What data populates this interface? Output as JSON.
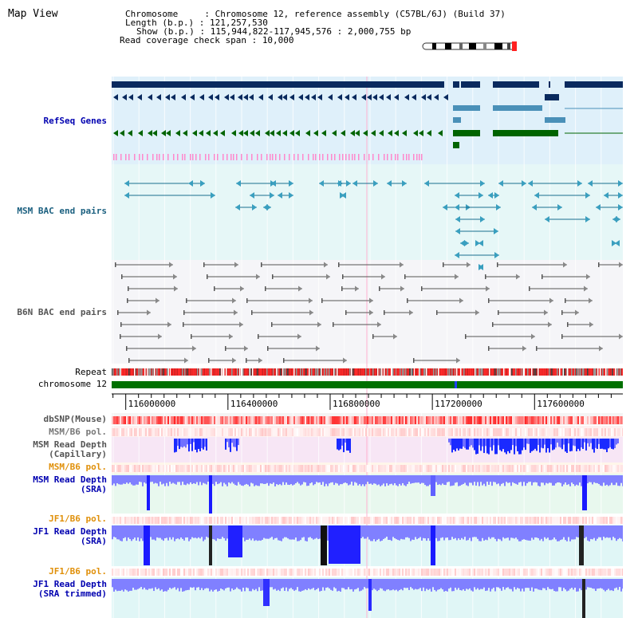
{
  "header": {
    "title": "Map View",
    "chromosome_label": "Chromosome     : ",
    "chromosome_value": "Chromosome 12, reference assembly (C57BL/6J) (Build 37)",
    "length_label": "Length (b.p.) : ",
    "length_value": "121,257,530",
    "show_label": "Show (b.p.) : ",
    "show_value": "115,944,822-117,945,576 : 2,000,755 bp",
    "coverage_label": "Read coverage check span : ",
    "coverage_value": "10,000"
  },
  "tracks": {
    "refseq": "RefSeq Genes",
    "msm_bac": "MSM BAC end pairs",
    "b6n_bac": "B6N BAC end pairs",
    "repeat": "Repeat",
    "chromosome": "chromosome 12",
    "dbsnp": "dbSNP(Mouse)",
    "msm_b6_pol_1": "MSM/B6 pol.",
    "msm_depth_cap_1": "MSM Read Depth",
    "msm_depth_cap_2": "(Capillary)",
    "msm_b6_pol_2": "MSM/B6 pol.",
    "msm_depth_sra_1": "MSM Read Depth",
    "msm_depth_sra_2": "(SRA)",
    "jf1_b6_pol_1": "JF1/B6 pol.",
    "jf1_depth_sra_1": "JF1 Read Depth",
    "jf1_depth_sra_2": "(SRA)",
    "jf1_b6_pol_2": "JF1/B6 pol.",
    "jf1_depth_trim_1": "JF1 Read Depth",
    "jf1_depth_trim_2": "(SRA trimmed)"
  },
  "axis": {
    "ticks": [
      {
        "bp": 116000000,
        "label": "116000000"
      },
      {
        "bp": 116400000,
        "label": "116400000"
      },
      {
        "bp": 116800000,
        "label": "116800000"
      },
      {
        "bp": 117200000,
        "label": "117200000"
      },
      {
        "bp": 117600000,
        "label": "117600000"
      }
    ],
    "start_bp": 115944822,
    "end_bp": 117945576
  },
  "colors": {
    "gene_navy": "#0a2a5e",
    "gene_teal": "#4a90b8",
    "gene_green": "#006400",
    "bac_teal": "#1a6f8f",
    "bac_grey": "#555555",
    "depth_blue": "#1a1aff",
    "pol_red": "#ff3333",
    "chrom_green": "#007000"
  }
}
